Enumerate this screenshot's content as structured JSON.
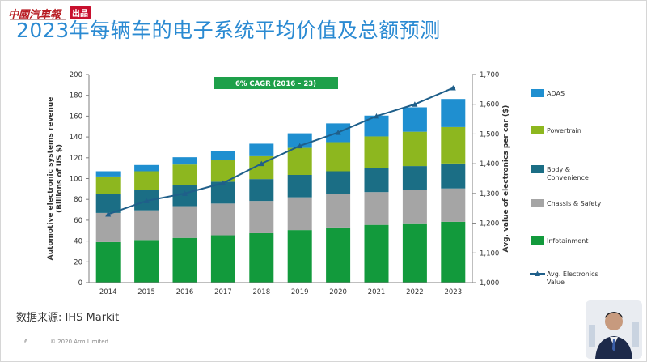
{
  "logo": {
    "text": "中國汽車報",
    "badge": "出品"
  },
  "title": "2023年每辆车的电子系统平均价值及总额预测",
  "source_text": "数据来源: IHS Markit",
  "footer": {
    "page_number": "6",
    "copyright": "© 2020 Arm Limited"
  },
  "colors": {
    "title": "#2a8ad2",
    "Infotainment": "#129a3c",
    "Chassis & Safety": "#a5a5a5",
    "Body & Convenience": "#1b6e85",
    "Powertrain": "#8db71f",
    "ADAS": "#1f8fd0",
    "line": "#1f5f8a",
    "cagr_box": "#1ea04a"
  },
  "chart_data": {
    "type": "bar",
    "stacked": true,
    "categories": [
      "2014",
      "2015",
      "2016",
      "2017",
      "2018",
      "2019",
      "2020",
      "2021",
      "2022",
      "2023"
    ],
    "series": [
      {
        "name": "Infotainment",
        "values": [
          39,
          41,
          43,
          45.5,
          47.5,
          50.5,
          53,
          55.5,
          57,
          58.5
        ]
      },
      {
        "name": "Chassis & Safety",
        "values": [
          28,
          28.5,
          30.5,
          30.5,
          31,
          31.5,
          32,
          31.5,
          32,
          32
        ]
      },
      {
        "name": "Body & Convenience",
        "values": [
          18,
          19.5,
          20.5,
          21,
          21,
          21.5,
          22,
          23,
          23,
          24
        ]
      },
      {
        "name": "Powertrain",
        "values": [
          17,
          18,
          19.5,
          20.5,
          22,
          26,
          28,
          30.5,
          33,
          35
        ]
      },
      {
        "name": "ADAS",
        "values": [
          5,
          6,
          7,
          9,
          12,
          14,
          18,
          20,
          23.5,
          27
        ]
      }
    ],
    "line_series": {
      "name": "Avg. Electronics Value",
      "axis": "right",
      "values": [
        1230,
        1275,
        1300,
        1335,
        1400,
        1460,
        1505,
        1560,
        1600,
        1655
      ]
    },
    "ylabel": "Automotive electronic systems revenue (Billions of US $)",
    "ylim": [
      0,
      200
    ],
    "yticks": [
      0,
      20,
      40,
      60,
      80,
      100,
      120,
      140,
      160,
      180,
      200
    ],
    "y2label": "Avg. value of electronics per car ($)",
    "y2lim": [
      1000,
      1700
    ],
    "y2ticks": [
      "1,000",
      "1,100",
      "1,200",
      "1,300",
      "1,400",
      "1,500",
      "1,600",
      "1,700"
    ],
    "y2tick_values": [
      1000,
      1100,
      1200,
      1300,
      1400,
      1500,
      1600,
      1700
    ],
    "annotation": "6% CAGR (2016 – 23)",
    "legend_placement": "right",
    "grid": false
  }
}
